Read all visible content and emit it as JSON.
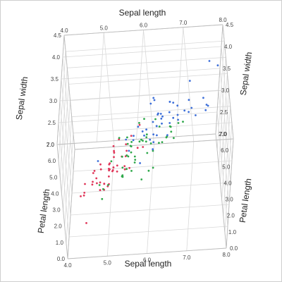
{
  "chart_data": {
    "type": "scatter",
    "view": "3d",
    "axes": {
      "x": {
        "title": "Sepal length",
        "range": [
          4.0,
          8.0
        ],
        "ticks": [
          "4.0",
          "5.0",
          "6.0",
          "7.0",
          "8.0"
        ]
      },
      "y": {
        "title": "Sepal width",
        "range": [
          2.0,
          4.5
        ],
        "ticks": [
          "2.0",
          "2.5",
          "3.0",
          "3.5",
          "4.0",
          "4.5"
        ]
      },
      "z": {
        "title": "Petal length",
        "range": [
          0.0,
          7.0
        ],
        "ticks": [
          "0.0",
          "1.0",
          "2.0",
          "3.0",
          "4.0",
          "5.0",
          "6.0",
          "7.0"
        ]
      }
    },
    "grid": true,
    "legend": "none",
    "series": [
      {
        "color": "#e0375a",
        "points": [
          [
            5.1,
            3.5,
            1.4
          ],
          [
            4.9,
            3.0,
            1.4
          ],
          [
            4.7,
            3.2,
            1.3
          ],
          [
            4.6,
            3.1,
            1.5
          ],
          [
            5.0,
            3.6,
            1.4
          ],
          [
            5.4,
            3.9,
            1.7
          ],
          [
            4.6,
            3.4,
            1.4
          ],
          [
            5.0,
            3.4,
            1.5
          ],
          [
            4.4,
            2.9,
            1.4
          ],
          [
            4.9,
            3.1,
            1.5
          ],
          [
            5.4,
            3.7,
            1.5
          ],
          [
            4.8,
            3.4,
            1.6
          ],
          [
            4.8,
            3.0,
            1.4
          ],
          [
            4.3,
            3.0,
            1.1
          ],
          [
            5.8,
            4.0,
            1.2
          ],
          [
            5.7,
            4.4,
            1.5
          ],
          [
            5.4,
            3.9,
            1.3
          ],
          [
            5.1,
            3.5,
            1.4
          ],
          [
            5.7,
            3.8,
            1.7
          ],
          [
            5.1,
            3.8,
            1.5
          ],
          [
            5.4,
            3.4,
            1.7
          ],
          [
            5.1,
            3.7,
            1.5
          ],
          [
            4.6,
            3.6,
            1.0
          ],
          [
            5.1,
            3.3,
            1.7
          ],
          [
            4.8,
            3.4,
            1.9
          ],
          [
            5.0,
            3.0,
            1.6
          ],
          [
            5.0,
            3.4,
            1.6
          ],
          [
            5.2,
            3.5,
            1.5
          ],
          [
            5.2,
            3.4,
            1.4
          ],
          [
            4.7,
            3.2,
            1.6
          ],
          [
            4.8,
            3.1,
            1.6
          ],
          [
            5.4,
            3.4,
            1.5
          ],
          [
            5.2,
            4.1,
            1.5
          ],
          [
            5.5,
            4.2,
            1.4
          ],
          [
            4.9,
            3.1,
            1.5
          ],
          [
            5.0,
            3.2,
            1.2
          ],
          [
            5.5,
            3.5,
            1.3
          ],
          [
            4.4,
            3.0,
            1.3
          ],
          [
            5.1,
            3.4,
            1.5
          ],
          [
            5.0,
            3.5,
            1.3
          ],
          [
            4.5,
            2.3,
            1.3
          ],
          [
            4.4,
            3.2,
            1.3
          ],
          [
            5.0,
            3.5,
            1.6
          ],
          [
            5.1,
            3.8,
            1.9
          ],
          [
            4.8,
            3.0,
            1.4
          ],
          [
            5.1,
            3.8,
            1.6
          ],
          [
            4.6,
            3.2,
            1.4
          ],
          [
            5.3,
            3.7,
            1.5
          ],
          [
            5.0,
            3.3,
            1.4
          ]
        ]
      },
      {
        "color": "#2ea84a",
        "points": [
          [
            7.0,
            3.2,
            4.7
          ],
          [
            6.4,
            3.2,
            4.5
          ],
          [
            6.9,
            3.1,
            4.9
          ],
          [
            5.5,
            2.3,
            4.0
          ],
          [
            6.5,
            2.8,
            4.6
          ],
          [
            5.7,
            2.8,
            4.5
          ],
          [
            6.3,
            3.3,
            4.7
          ],
          [
            4.9,
            2.4,
            3.3
          ],
          [
            6.6,
            2.9,
            4.6
          ],
          [
            5.2,
            2.7,
            3.9
          ],
          [
            5.0,
            2.0,
            3.5
          ],
          [
            5.9,
            3.0,
            4.2
          ],
          [
            6.0,
            2.2,
            4.0
          ],
          [
            6.1,
            2.9,
            4.7
          ],
          [
            5.6,
            2.9,
            3.6
          ],
          [
            6.7,
            3.1,
            4.4
          ],
          [
            5.6,
            3.0,
            4.5
          ],
          [
            5.8,
            2.7,
            4.1
          ],
          [
            6.2,
            2.2,
            4.5
          ],
          [
            5.6,
            2.5,
            3.9
          ],
          [
            5.9,
            3.2,
            4.8
          ],
          [
            6.1,
            2.8,
            4.0
          ],
          [
            6.3,
            2.5,
            4.9
          ],
          [
            6.1,
            2.8,
            4.7
          ],
          [
            6.4,
            2.9,
            4.3
          ],
          [
            6.6,
            3.0,
            4.4
          ],
          [
            6.8,
            2.8,
            4.8
          ],
          [
            6.7,
            3.0,
            5.0
          ],
          [
            6.0,
            2.9,
            4.5
          ],
          [
            5.7,
            2.6,
            3.5
          ],
          [
            5.5,
            2.4,
            3.8
          ],
          [
            5.5,
            2.4,
            3.7
          ],
          [
            5.8,
            2.7,
            3.9
          ],
          [
            6.0,
            2.7,
            5.1
          ],
          [
            5.4,
            3.0,
            4.5
          ],
          [
            6.0,
            3.4,
            4.5
          ],
          [
            6.7,
            3.1,
            4.7
          ],
          [
            6.3,
            2.3,
            4.4
          ],
          [
            5.6,
            3.0,
            4.1
          ],
          [
            5.5,
            2.5,
            4.0
          ],
          [
            5.5,
            2.6,
            4.4
          ],
          [
            6.1,
            3.0,
            4.6
          ],
          [
            5.8,
            2.6,
            4.0
          ],
          [
            5.0,
            2.3,
            3.3
          ],
          [
            5.6,
            2.7,
            4.2
          ],
          [
            5.7,
            3.0,
            4.2
          ],
          [
            5.7,
            2.9,
            4.2
          ],
          [
            6.2,
            2.9,
            4.3
          ],
          [
            5.1,
            2.5,
            3.0
          ],
          [
            5.7,
            2.8,
            4.1
          ]
        ]
      },
      {
        "color": "#3d6fd9",
        "points": [
          [
            6.3,
            3.3,
            6.0
          ],
          [
            5.8,
            2.7,
            5.1
          ],
          [
            7.1,
            3.0,
            5.9
          ],
          [
            6.3,
            2.9,
            5.6
          ],
          [
            6.5,
            3.0,
            5.8
          ],
          [
            7.6,
            3.0,
            6.6
          ],
          [
            4.9,
            2.5,
            4.5
          ],
          [
            7.3,
            2.9,
            6.3
          ],
          [
            6.7,
            2.5,
            5.8
          ],
          [
            7.2,
            3.6,
            6.1
          ],
          [
            6.5,
            3.2,
            5.1
          ],
          [
            6.4,
            2.7,
            5.3
          ],
          [
            6.8,
            3.0,
            5.5
          ],
          [
            5.7,
            2.5,
            5.0
          ],
          [
            5.8,
            2.8,
            5.1
          ],
          [
            6.4,
            3.2,
            5.3
          ],
          [
            6.5,
            3.0,
            5.5
          ],
          [
            7.7,
            3.8,
            6.7
          ],
          [
            7.7,
            2.6,
            6.9
          ],
          [
            6.0,
            2.2,
            5.0
          ],
          [
            6.9,
            3.2,
            5.7
          ],
          [
            5.6,
            2.8,
            4.9
          ],
          [
            7.7,
            2.8,
            6.7
          ],
          [
            6.3,
            2.7,
            4.9
          ],
          [
            6.7,
            3.3,
            5.7
          ],
          [
            7.2,
            3.2,
            6.0
          ],
          [
            6.2,
            2.8,
            4.8
          ],
          [
            6.1,
            3.0,
            4.9
          ],
          [
            6.4,
            2.8,
            5.6
          ],
          [
            7.2,
            3.0,
            5.8
          ],
          [
            7.4,
            2.8,
            6.1
          ],
          [
            7.9,
            3.8,
            6.4
          ],
          [
            6.4,
            2.8,
            5.6
          ],
          [
            6.3,
            2.8,
            5.1
          ],
          [
            6.1,
            2.6,
            5.6
          ],
          [
            7.7,
            3.0,
            6.1
          ],
          [
            6.3,
            3.4,
            5.6
          ],
          [
            6.4,
            3.1,
            5.5
          ],
          [
            6.0,
            3.0,
            4.8
          ],
          [
            6.9,
            3.1,
            5.4
          ],
          [
            6.7,
            3.1,
            5.6
          ],
          [
            6.9,
            3.1,
            5.1
          ],
          [
            6.8,
            3.2,
            5.9
          ],
          [
            6.7,
            3.3,
            5.7
          ],
          [
            6.7,
            3.0,
            5.2
          ],
          [
            6.3,
            2.5,
            5.0
          ],
          [
            6.5,
            3.0,
            5.2
          ],
          [
            6.2,
            3.4,
            5.4
          ],
          [
            5.9,
            3.0,
            5.1
          ]
        ]
      }
    ]
  }
}
